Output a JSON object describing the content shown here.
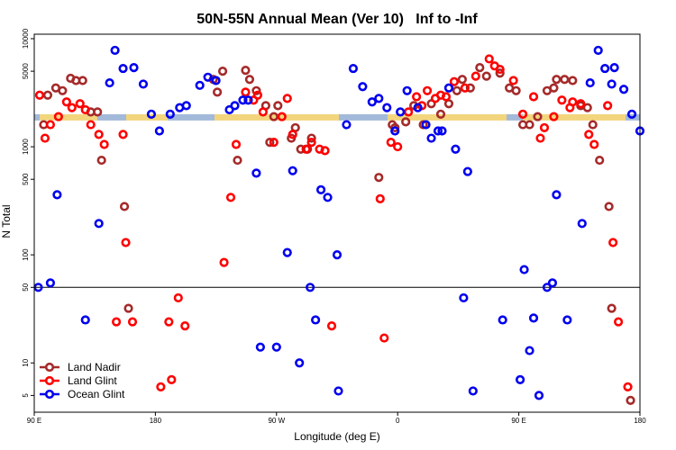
{
  "chart_data": {
    "type": "scatter",
    "title": "50N-55N Annual Mean (Ver 10)   Inf to -Inf",
    "xlabel": "Longitude (deg E)",
    "ylabel": "N Total",
    "x_tick_labels": [
      "90 E",
      "180",
      "90 W",
      "0",
      "90 E",
      "180"
    ],
    "x_tick_positions": [
      90,
      180,
      270,
      360,
      450,
      540
    ],
    "xlim": [
      90,
      540
    ],
    "y_scale": "log",
    "ylim": [
      3.5,
      11000
    ],
    "y_ticks": [
      5,
      10,
      50,
      100,
      500,
      1000,
      5000,
      10000
    ],
    "reference_line": 50,
    "legend_position": "bottom-left",
    "series": [
      {
        "name": "Land Nadir",
        "color": "#a52a2a",
        "points": [
          [
            97,
            1600
          ],
          [
            100,
            3000
          ],
          [
            106,
            3500
          ],
          [
            111,
            3300
          ],
          [
            117,
            4300
          ],
          [
            121,
            4100
          ],
          [
            126,
            4100
          ],
          [
            132,
            2100
          ],
          [
            137,
            2100
          ],
          [
            140,
            750
          ],
          [
            157,
            280
          ],
          [
            160,
            32
          ],
          [
            223,
            4200
          ],
          [
            226,
            3200
          ],
          [
            230,
            5000
          ],
          [
            241,
            750
          ],
          [
            247,
            5100
          ],
          [
            250,
            4200
          ],
          [
            255,
            3300
          ],
          [
            262,
            2400
          ],
          [
            265,
            1100
          ],
          [
            268,
            1900
          ],
          [
            271,
            2400
          ],
          [
            281,
            1200
          ],
          [
            284,
            1500
          ],
          [
            288,
            950
          ],
          [
            293,
            950
          ],
          [
            296,
            1200
          ],
          [
            346,
            520
          ],
          [
            356,
            1600
          ],
          [
            358,
            1500
          ],
          [
            366,
            1700
          ],
          [
            372,
            2400
          ],
          [
            379,
            1600
          ],
          [
            385,
            2500
          ],
          [
            392,
            2000
          ],
          [
            398,
            2500
          ],
          [
            404,
            3300
          ],
          [
            408,
            4200
          ],
          [
            414,
            3500
          ],
          [
            421,
            5400
          ],
          [
            426,
            4500
          ],
          [
            436,
            4800
          ],
          [
            443,
            3500
          ],
          [
            448,
            3300
          ],
          [
            453,
            1600
          ],
          [
            458,
            1600
          ],
          [
            464,
            1900
          ],
          [
            471,
            3300
          ],
          [
            476,
            3500
          ],
          [
            478,
            4200
          ],
          [
            484,
            4200
          ],
          [
            490,
            4100
          ],
          [
            496,
            2400
          ],
          [
            501,
            2300
          ],
          [
            505,
            1600
          ],
          [
            510,
            750
          ],
          [
            517,
            280
          ],
          [
            519,
            32
          ],
          [
            533,
            4.5
          ]
        ]
      },
      {
        "name": "Land Glint",
        "color": "#ff0000",
        "points": [
          [
            94,
            3000
          ],
          [
            98,
            1200
          ],
          [
            102,
            1600
          ],
          [
            108,
            1900
          ],
          [
            114,
            2600
          ],
          [
            118,
            2300
          ],
          [
            124,
            2500
          ],
          [
            128,
            2200
          ],
          [
            132,
            1600
          ],
          [
            138,
            1300
          ],
          [
            142,
            1050
          ],
          [
            151,
            24
          ],
          [
            156,
            1300
          ],
          [
            158,
            130
          ],
          [
            163,
            24
          ],
          [
            184,
            6
          ],
          [
            190,
            24
          ],
          [
            192,
            7
          ],
          [
            197,
            40
          ],
          [
            202,
            22
          ],
          [
            231,
            85
          ],
          [
            236,
            340
          ],
          [
            240,
            1050
          ],
          [
            247,
            3200
          ],
          [
            253,
            2700
          ],
          [
            256,
            3000
          ],
          [
            260,
            2100
          ],
          [
            268,
            1100
          ],
          [
            274,
            1900
          ],
          [
            278,
            2800
          ],
          [
            282,
            1300
          ],
          [
            292,
            950
          ],
          [
            296,
            1100
          ],
          [
            302,
            950
          ],
          [
            306,
            920
          ],
          [
            311,
            22
          ],
          [
            347,
            330
          ],
          [
            350,
            17
          ],
          [
            355,
            1100
          ],
          [
            360,
            1000
          ],
          [
            368,
            2100
          ],
          [
            374,
            2900
          ],
          [
            378,
            2400
          ],
          [
            382,
            3300
          ],
          [
            388,
            2800
          ],
          [
            392,
            3000
          ],
          [
            396,
            2900
          ],
          [
            402,
            4000
          ],
          [
            410,
            3500
          ],
          [
            418,
            4500
          ],
          [
            428,
            6500
          ],
          [
            432,
            5600
          ],
          [
            436,
            5200
          ],
          [
            446,
            4100
          ],
          [
            453,
            2000
          ],
          [
            461,
            2900
          ],
          [
            466,
            1200
          ],
          [
            469,
            1500
          ],
          [
            476,
            1900
          ],
          [
            482,
            2700
          ],
          [
            488,
            2300
          ],
          [
            490,
            2600
          ],
          [
            496,
            2500
          ],
          [
            502,
            1300
          ],
          [
            506,
            1050
          ],
          [
            516,
            2400
          ],
          [
            520,
            130
          ],
          [
            524,
            24
          ],
          [
            531,
            6
          ]
        ]
      },
      {
        "name": "Ocean Glint",
        "color": "#0000ee",
        "points": [
          [
            93,
            50
          ],
          [
            102,
            55
          ],
          [
            107,
            360
          ],
          [
            128,
            25
          ],
          [
            138,
            195
          ],
          [
            146,
            3900
          ],
          [
            150,
            7800
          ],
          [
            156,
            5300
          ],
          [
            164,
            5400
          ],
          [
            171,
            3800
          ],
          [
            177,
            2000
          ],
          [
            183,
            1400
          ],
          [
            191,
            2000
          ],
          [
            198,
            2300
          ],
          [
            203,
            2400
          ],
          [
            213,
            3700
          ],
          [
            219,
            4400
          ],
          [
            225,
            4100
          ],
          [
            235,
            2200
          ],
          [
            239,
            2400
          ],
          [
            245,
            2700
          ],
          [
            249,
            2700
          ],
          [
            255,
            570
          ],
          [
            258,
            14
          ],
          [
            270,
            14
          ],
          [
            278,
            105
          ],
          [
            282,
            600
          ],
          [
            287,
            10
          ],
          [
            295,
            50
          ],
          [
            299,
            25
          ],
          [
            303,
            400
          ],
          [
            308,
            340
          ],
          [
            315,
            100
          ],
          [
            316,
            5.5
          ],
          [
            322,
            1600
          ],
          [
            327,
            5300
          ],
          [
            334,
            3600
          ],
          [
            341,
            2600
          ],
          [
            346,
            2800
          ],
          [
            352,
            2300
          ],
          [
            358,
            1400
          ],
          [
            362,
            2100
          ],
          [
            367,
            3300
          ],
          [
            375,
            2300
          ],
          [
            381,
            1600
          ],
          [
            385,
            1200
          ],
          [
            390,
            1400
          ],
          [
            393,
            1400
          ],
          [
            398,
            3500
          ],
          [
            403,
            950
          ],
          [
            409,
            40
          ],
          [
            412,
            590
          ],
          [
            416,
            5.5
          ],
          [
            438,
            25
          ],
          [
            451,
            7
          ],
          [
            454,
            73
          ],
          [
            458,
            13
          ],
          [
            461,
            26
          ],
          [
            465,
            5
          ],
          [
            471,
            50
          ],
          [
            475,
            55
          ],
          [
            478,
            360
          ],
          [
            486,
            25
          ],
          [
            497,
            195
          ],
          [
            503,
            3900
          ],
          [
            509,
            7800
          ],
          [
            514,
            5300
          ],
          [
            519,
            3800
          ],
          [
            521,
            5400
          ],
          [
            528,
            3400
          ],
          [
            534,
            2000
          ],
          [
            540,
            1400
          ]
        ]
      }
    ],
    "band_colors": {
      "tan": "#f2d57d",
      "blue": "#a3b9d9"
    }
  }
}
